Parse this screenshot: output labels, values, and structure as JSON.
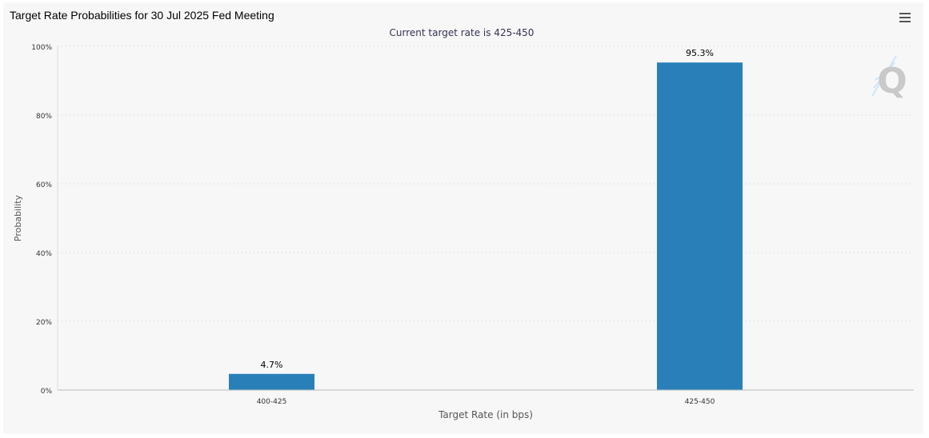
{
  "header": {
    "title": "Target Rate Probabilities for 30 Jul 2025 Fed Meeting",
    "menu_icon": "hamburger-menu-icon"
  },
  "watermark": {
    "letter": "Q"
  },
  "colors": {
    "bar": "#2980b9",
    "grid": "#cccccc",
    "axis": "#bbbbbb",
    "background": "#f7f7f7"
  },
  "chart_data": {
    "type": "bar",
    "title": "",
    "subtitle": "Current target rate is 425-450",
    "xlabel": "Target Rate (in bps)",
    "ylabel": "Probability",
    "categories": [
      "400-425",
      "425-450"
    ],
    "values": [
      4.7,
      95.3
    ],
    "data_labels": [
      "4.7%",
      "95.3%"
    ],
    "ylim": [
      0,
      100
    ],
    "yticks": [
      "0%",
      "20%",
      "40%",
      "60%",
      "80%",
      "100%"
    ],
    "ytick_values": [
      0,
      20,
      40,
      60,
      80,
      100
    ],
    "grid": true,
    "legend": "none"
  }
}
